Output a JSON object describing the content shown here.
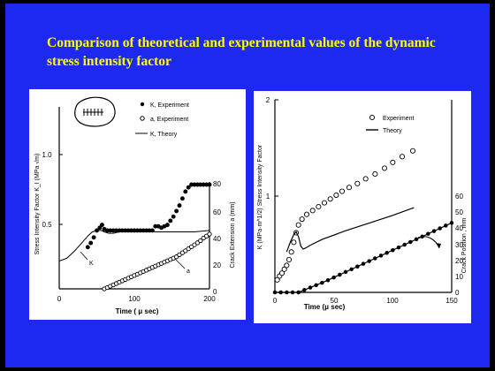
{
  "slide": {
    "title": "Comparison of theoretical and experimental values of the dynamic stress intensity factor",
    "background": "#1d29f0",
    "title_color": "#ffff00"
  },
  "chart_data": [
    {
      "type": "scatter",
      "left_axis_label": "Stress Intensity Factor  K_I  (MPa √m)",
      "right_axis_label": "Crack Extension  a (mm)",
      "xlabel": "Time ( μ sec)",
      "xlim": [
        0,
        200
      ],
      "x_ticks": [
        "0",
        "100",
        "200"
      ],
      "ylim_left": [
        0,
        1.5
      ],
      "y_ticks_left": [
        "0.5",
        "1.0"
      ],
      "ylim_right": [
        0,
        80
      ],
      "y_ticks_right": [
        "0",
        "20",
        "40",
        "60",
        "80"
      ],
      "legend": [
        "K, Experiment",
        "a, Experiment",
        "K, Theory"
      ],
      "curve_labels": [
        "K",
        "a"
      ],
      "series": [
        {
          "name": "K, Experiment",
          "marker": "filled",
          "axis": "left",
          "x": [
            38,
            42,
            46,
            50,
            54,
            57,
            60,
            64,
            68,
            72,
            76,
            80,
            84,
            88,
            92,
            96,
            100,
            104,
            108,
            112,
            116,
            120,
            124,
            128,
            132,
            136,
            140,
            144,
            148,
            152,
            156,
            160,
            164,
            168,
            172,
            176,
            180,
            184,
            188,
            192,
            196,
            200
          ],
          "y": [
            0.3,
            0.33,
            0.37,
            0.42,
            0.44,
            0.46,
            0.43,
            0.42,
            0.42,
            0.42,
            0.42,
            0.42,
            0.42,
            0.42,
            0.42,
            0.42,
            0.42,
            0.42,
            0.42,
            0.42,
            0.42,
            0.42,
            0.42,
            0.45,
            0.45,
            0.44,
            0.45,
            0.46,
            0.49,
            0.52,
            0.56,
            0.6,
            0.65,
            0.7,
            0.73,
            0.75,
            0.75,
            0.75,
            0.75,
            0.75,
            0.75,
            0.75
          ]
        },
        {
          "name": "a, Experiment",
          "marker": "open",
          "axis": "right",
          "x": [
            60,
            64,
            68,
            72,
            76,
            80,
            84,
            88,
            92,
            96,
            100,
            104,
            108,
            112,
            116,
            120,
            124,
            128,
            132,
            136,
            140,
            144,
            148,
            152,
            156,
            160,
            164,
            168,
            172,
            176,
            180,
            184,
            188,
            192,
            196,
            200
          ],
          "y": [
            0,
            1,
            2,
            3,
            4,
            5,
            6,
            7,
            8,
            9,
            10,
            11,
            12,
            13,
            14,
            15,
            16,
            17,
            18,
            19,
            20,
            21,
            22,
            23,
            24,
            25.5,
            27,
            28.5,
            30,
            31.5,
            33,
            34.5,
            36,
            38,
            39.5,
            41
          ]
        },
        {
          "name": "K, Theory",
          "marker": "line",
          "axis": "left",
          "x": [
            0,
            10,
            20,
            30,
            38,
            44,
            50,
            56,
            60,
            66,
            72,
            80,
            100,
            120,
            140,
            160,
            180,
            200
          ],
          "y": [
            0.2,
            0.22,
            0.27,
            0.33,
            0.38,
            0.41,
            0.42,
            0.42,
            0.41,
            0.4,
            0.4,
            0.41,
            0.41,
            0.41,
            0.41,
            0.41,
            0.41,
            0.42
          ]
        }
      ]
    },
    {
      "type": "scatter",
      "left_axis_label": "K (MPa·m^1/2) Stress Intensity Factor",
      "right_axis_label": "Crack Position , mm",
      "xlabel": "Time (μ sec)",
      "xlim": [
        0,
        150
      ],
      "x_ticks": [
        "0",
        "50",
        "100",
        "150"
      ],
      "ylim_left": [
        0,
        2
      ],
      "y_ticks_left": [
        "1",
        "2"
      ],
      "ylim_right": [
        0,
        60
      ],
      "y_ticks_right": [
        "0",
        "10",
        "20",
        "30",
        "40",
        "50",
        "60"
      ],
      "legend": [
        "Experiment",
        "Theory"
      ],
      "series": [
        {
          "name": "Experiment",
          "marker": "open",
          "axis": "left",
          "x": [
            2,
            4,
            6,
            8,
            10,
            12,
            14,
            16,
            18,
            20,
            23,
            27,
            32,
            37,
            42,
            47,
            52,
            57,
            63,
            70,
            77,
            85,
            93,
            100,
            108,
            117
          ],
          "y": [
            0.13,
            0.17,
            0.2,
            0.24,
            0.28,
            0.34,
            0.42,
            0.52,
            0.62,
            0.7,
            0.76,
            0.81,
            0.85,
            0.89,
            0.93,
            0.97,
            1.01,
            1.05,
            1.09,
            1.13,
            1.18,
            1.23,
            1.29,
            1.35,
            1.41,
            1.47
          ]
        },
        {
          "name": "Theory",
          "marker": "line",
          "axis": "left",
          "x": [
            10,
            13,
            16,
            18,
            20,
            22,
            24,
            26,
            30,
            40,
            60,
            80,
            100,
            118
          ],
          "y": [
            0.42,
            0.52,
            0.6,
            0.63,
            0.58,
            0.48,
            0.45,
            0.46,
            0.49,
            0.55,
            0.64,
            0.72,
            0.8,
            0.88
          ]
        },
        {
          "name": "Crack Position",
          "marker": "filled-line",
          "axis": "right",
          "x": [
            0,
            5,
            10,
            15,
            20,
            25,
            30,
            35,
            40,
            45,
            50,
            55,
            60,
            65,
            70,
            75,
            80,
            85,
            90,
            95,
            100,
            105,
            110,
            115,
            120,
            125,
            130,
            135,
            140,
            145,
            150
          ],
          "y": [
            0,
            0,
            0,
            0,
            0,
            1.5,
            3,
            4.5,
            6,
            7.6,
            9.3,
            11,
            12.7,
            14.4,
            16.1,
            17.8,
            19.5,
            21.2,
            22.9,
            24.6,
            26.3,
            28,
            29.7,
            31.4,
            33.1,
            34.8,
            36.5,
            38.2,
            39.9,
            41.6,
            43.3
          ]
        }
      ]
    }
  ]
}
